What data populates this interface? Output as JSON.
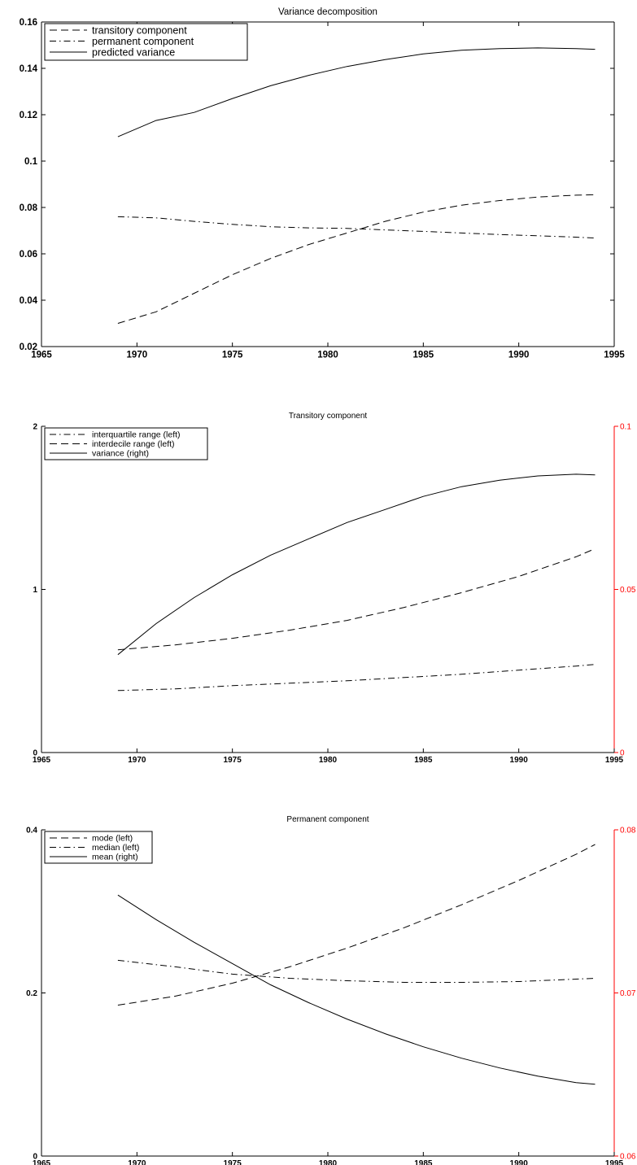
{
  "chart_data": [
    {
      "type": "line",
      "title": "Variance decomposition",
      "xlim": [
        1965,
        1995
      ],
      "ylim": [
        0.02,
        0.16
      ],
      "xticks": [
        "1965",
        "1970",
        "1975",
        "1980",
        "1985",
        "1990",
        "1995"
      ],
      "yticks_left": [
        "0.02",
        "0.04",
        "0.06",
        "0.08",
        "0.1",
        "0.12",
        "0.14",
        "0.16"
      ],
      "legend_position": "top-left",
      "grid": false,
      "series": [
        {
          "name": "transitory component",
          "style": "dashed",
          "axis": "left",
          "x": [
            1969,
            1971,
            1973,
            1975,
            1977,
            1979,
            1981,
            1983,
            1985,
            1987,
            1989,
            1991,
            1993,
            1994
          ],
          "y": [
            0.03,
            0.035,
            0.043,
            0.051,
            0.058,
            0.064,
            0.069,
            0.074,
            0.078,
            0.081,
            0.083,
            0.0845,
            0.0853,
            0.0855
          ]
        },
        {
          "name": "permanent component",
          "style": "dashdot",
          "axis": "left",
          "x": [
            1969,
            1971,
            1973,
            1975,
            1977,
            1979,
            1981,
            1983,
            1985,
            1987,
            1989,
            1991,
            1993,
            1994
          ],
          "y": [
            0.076,
            0.0755,
            0.074,
            0.0727,
            0.0717,
            0.0712,
            0.071,
            0.0703,
            0.0697,
            0.069,
            0.0683,
            0.0678,
            0.0672,
            0.0668
          ]
        },
        {
          "name": "predicted variance",
          "style": "solid",
          "axis": "left",
          "x": [
            1969,
            1971,
            1973,
            1975,
            1977,
            1979,
            1981,
            1983,
            1985,
            1987,
            1989,
            1991,
            1993,
            1994
          ],
          "y": [
            0.1105,
            0.1175,
            0.121,
            0.127,
            0.1325,
            0.137,
            0.1408,
            0.1438,
            0.1462,
            0.1478,
            0.1485,
            0.1488,
            0.1485,
            0.1482
          ]
        }
      ]
    },
    {
      "type": "line",
      "title": "Transitory component",
      "xlim": [
        1965,
        1995
      ],
      "ylim": [
        0,
        2
      ],
      "ylim_right": [
        0,
        0.1
      ],
      "right_axis_color": "#ff0000",
      "xticks": [
        "1965",
        "1970",
        "1975",
        "1980",
        "1985",
        "1990",
        "1995"
      ],
      "yticks_left": [
        "0",
        "1",
        "2"
      ],
      "yticks_right": [
        "0",
        "0.05",
        "0.1"
      ],
      "legend_position": "top-left",
      "grid": false,
      "series": [
        {
          "name": "interquartile range (left)",
          "style": "dashdot",
          "axis": "left",
          "x": [
            1969,
            1972,
            1975,
            1978,
            1981,
            1984,
            1987,
            1990,
            1993,
            1994
          ],
          "y": [
            0.38,
            0.39,
            0.41,
            0.425,
            0.44,
            0.46,
            0.48,
            0.505,
            0.53,
            0.54
          ]
        },
        {
          "name": "interdecile range (left)",
          "style": "dashed",
          "axis": "left",
          "x": [
            1969,
            1972,
            1975,
            1978,
            1981,
            1984,
            1987,
            1990,
            1993,
            1994
          ],
          "y": [
            0.63,
            0.66,
            0.7,
            0.75,
            0.81,
            0.89,
            0.98,
            1.08,
            1.2,
            1.25
          ]
        },
        {
          "name": "variance (right)",
          "style": "solid",
          "axis": "right",
          "x": [
            1969,
            1971,
            1973,
            1975,
            1977,
            1979,
            1981,
            1983,
            1985,
            1987,
            1989,
            1991,
            1993,
            1994
          ],
          "y": [
            0.03,
            0.0395,
            0.0475,
            0.0545,
            0.0605,
            0.0655,
            0.0705,
            0.0745,
            0.0785,
            0.0815,
            0.0835,
            0.0848,
            0.0853,
            0.0851
          ]
        }
      ]
    },
    {
      "type": "line",
      "title": "Permanent component",
      "xlim": [
        1965,
        1995
      ],
      "ylim": [
        0,
        0.4
      ],
      "ylim_right": [
        0.06,
        0.08
      ],
      "right_axis_color": "#ff0000",
      "xticks": [
        "1965",
        "1970",
        "1975",
        "1980",
        "1985",
        "1990",
        "1995"
      ],
      "yticks_left": [
        "0",
        "0.2",
        "0.4"
      ],
      "yticks_right": [
        "0.06",
        "0.07",
        "0.08"
      ],
      "legend_position": "top-left",
      "grid": false,
      "series": [
        {
          "name": "mode (left)",
          "style": "dashed",
          "axis": "left",
          "x": [
            1969,
            1972,
            1975,
            1978,
            1981,
            1984,
            1987,
            1990,
            1993,
            1994
          ],
          "y": [
            0.185,
            0.196,
            0.212,
            0.232,
            0.255,
            0.28,
            0.308,
            0.338,
            0.37,
            0.382
          ]
        },
        {
          "name": "median (left)",
          "style": "dashdot",
          "axis": "left",
          "x": [
            1969,
            1972,
            1975,
            1978,
            1981,
            1984,
            1987,
            1990,
            1993,
            1994
          ],
          "y": [
            0.24,
            0.232,
            0.223,
            0.218,
            0.215,
            0.213,
            0.213,
            0.214,
            0.217,
            0.218
          ]
        },
        {
          "name": "mean (right)",
          "style": "solid",
          "axis": "right",
          "x": [
            1969,
            1971,
            1973,
            1975,
            1977,
            1979,
            1981,
            1983,
            1985,
            1987,
            1989,
            1991,
            1993,
            1994
          ],
          "y": [
            0.076,
            0.0745,
            0.0731,
            0.0718,
            0.0705,
            0.0694,
            0.0684,
            0.0675,
            0.0667,
            0.066,
            0.0654,
            0.0649,
            0.0645,
            0.0644
          ]
        }
      ]
    }
  ]
}
